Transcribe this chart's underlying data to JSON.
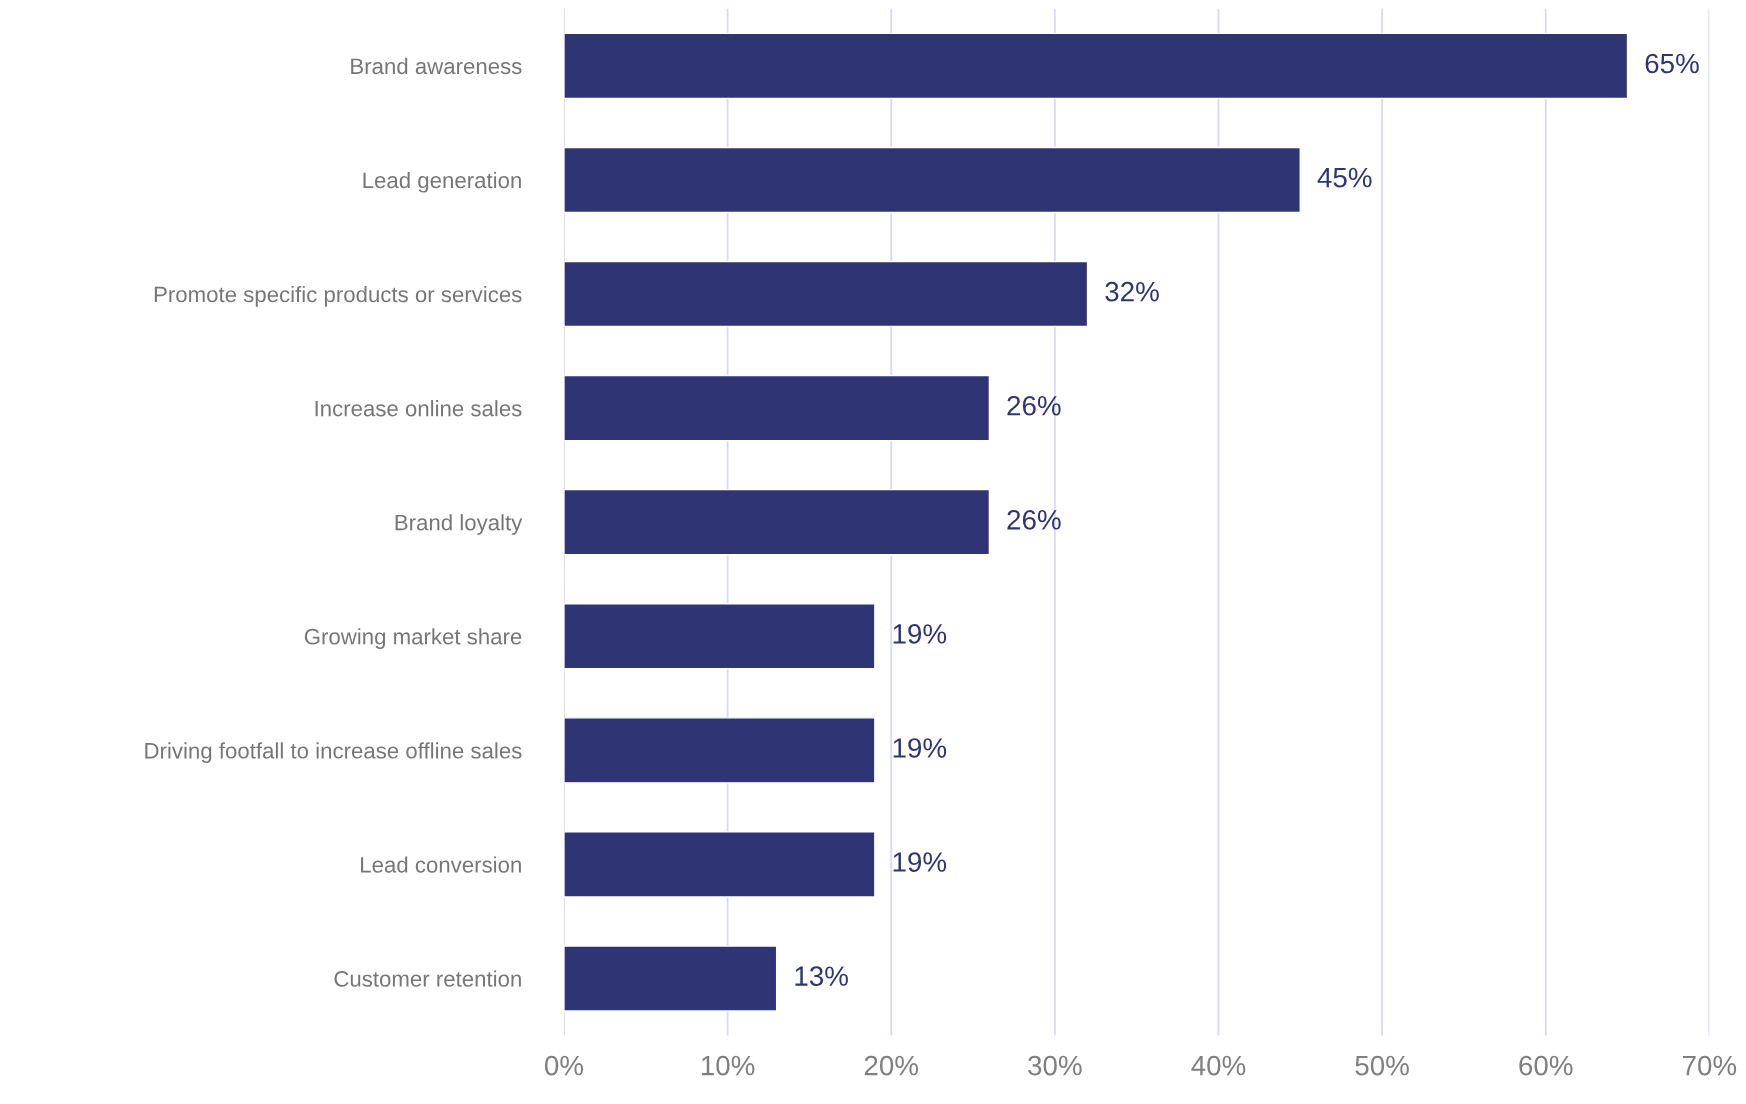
{
  "chart_data": {
    "type": "bar",
    "orientation": "horizontal",
    "categories": [
      "Brand awareness",
      "Lead generation",
      "Promote specific products or services",
      "Increase online sales",
      "Brand loyalty",
      "Growing market share",
      "Driving footfall to increase offline sales",
      "Lead conversion",
      "Customer retention"
    ],
    "values": [
      65,
      45,
      32,
      26,
      26,
      19,
      19,
      19,
      13
    ],
    "value_labels": [
      "65%",
      "45%",
      "32%",
      "26%",
      "26%",
      "19%",
      "19%",
      "19%",
      "13%"
    ],
    "color": "#2f3574",
    "xlim": [
      0,
      70
    ],
    "xticks": [
      {
        "value": 0,
        "label": "0%"
      },
      {
        "value": 10,
        "label": "10%"
      },
      {
        "value": 20,
        "label": "20%"
      },
      {
        "value": 30,
        "label": "30%"
      },
      {
        "value": 40,
        "label": "40%"
      },
      {
        "value": 50,
        "label": "50%"
      },
      {
        "value": 60,
        "label": "60%"
      },
      {
        "value": 70,
        "label": "70%"
      }
    ],
    "grid": "x",
    "legend": false
  }
}
